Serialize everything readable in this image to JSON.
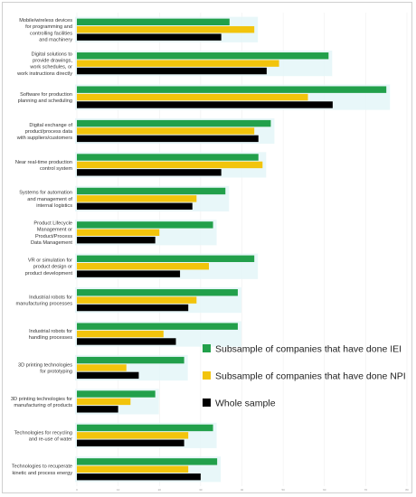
{
  "chart_data": {
    "type": "bar",
    "orientation": "horizontal",
    "categories": [
      [
        "Mobile/wireless devices",
        "for programming and",
        "controlling facilities",
        "and machinery"
      ],
      [
        "Digital solutions to",
        "provide drawings,",
        "work schedules, or",
        "work instructions directly"
      ],
      [
        "Software for production",
        "planning and scheduling"
      ],
      [
        "Digital exchange of",
        "product/process data",
        "with suppliers/customers"
      ],
      [
        "Near real-time production",
        "control system"
      ],
      [
        "Systems for automation",
        "and management of",
        "internal logistics"
      ],
      [
        "Product Lifecycle",
        "Management or",
        "Product/Process",
        "Data Management"
      ],
      [
        "VR or simulation for",
        "product design or",
        "product development"
      ],
      [
        "Industrial robots for",
        "manufacturing processes"
      ],
      [
        "Industrial robots for",
        "handling processes"
      ],
      [
        "3D printing technologies",
        "for prototyping"
      ],
      [
        "3D printing technologies for",
        "manufacturing of products"
      ],
      [
        "Technologies for recycling",
        "and re-use of water"
      ],
      [
        "Technologies to recuperate",
        "kinetic and process energy"
      ]
    ],
    "series": [
      {
        "name": "Subsample of companies that have done IEI",
        "color": "#22a04b",
        "values": [
          37,
          61,
          75,
          47,
          44,
          36,
          33,
          43,
          39,
          39,
          26,
          19,
          33,
          34
        ]
      },
      {
        "name": "Subsample of companies that have done NPI",
        "color": "#f2c40c",
        "values": [
          43,
          49,
          56,
          43,
          45,
          29,
          20,
          32,
          29,
          21,
          12,
          13,
          27,
          27
        ]
      },
      {
        "name": "Whole sample",
        "color": "#000000",
        "values": [
          35,
          46,
          62,
          44,
          35,
          28,
          19,
          25,
          27,
          24,
          15,
          10,
          26,
          30
        ]
      }
    ],
    "xlim": [
      0,
      80
    ],
    "xticks": [
      "0",
      "10",
      "20",
      "30",
      "40",
      "50",
      "60",
      "70",
      "80"
    ],
    "legend_order": [
      "Subsample of companies that have done IEI",
      "Subsample of companies that have done NPI",
      "Whole sample"
    ],
    "legend_position": "right",
    "grid": true,
    "title": "",
    "xlabel": "",
    "ylabel": ""
  }
}
